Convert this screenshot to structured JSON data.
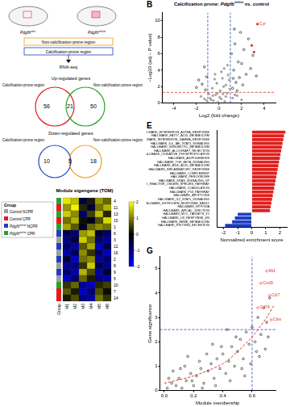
{
  "schematic": {
    "mice": [
      [
        {
          "text": "Pdgfb",
          "italic": true
        },
        {
          "text": "ret/+",
          "sup": true
        }
      ],
      [
        {
          "text": "Pdgfb",
          "italic": true
        },
        {
          "text": "ret/ret",
          "sup": true
        }
      ]
    ],
    "boxes": [
      "Non-calcification-prone region",
      "Calcification-prone region"
    ],
    "method": "RNA-seq"
  },
  "venn": [
    {
      "title": "Up-regulated genes",
      "left": {
        "label": "Calcification-prone region",
        "color": "#e41a1c",
        "count": 56
      },
      "overlap": 21,
      "right": {
        "label": "Non-calcification-prone region",
        "color": "#2ca02c",
        "count": 50
      }
    },
    {
      "title": "Down-regulated genes",
      "left": {
        "label": "Calcification-prone region",
        "color": "#1f3fbf",
        "count": 10
      },
      "overlap": 5,
      "right": {
        "label": "Non-calcification-prone region",
        "color": "#f39c12",
        "count": 18
      }
    }
  ],
  "heatmap": {
    "title": "Module eigengene (TOM)",
    "legend_title": "Group",
    "groups": [
      {
        "parts": [
          {
            "text": "Control NCPR"
          }
        ],
        "color": "#9e9e9e"
      },
      {
        "parts": [
          {
            "text": "Control CPR"
          }
        ],
        "color": "#e41a1c"
      },
      {
        "parts": [
          {
            "text": "Pdgfb",
            "italic": true
          },
          {
            "text": "ret/ret",
            "sup": true
          },
          {
            "text": " NCPR"
          }
        ],
        "color": "#1f3fbf"
      },
      {
        "parts": [
          {
            "text": "Pdgfb",
            "italic": true
          },
          {
            "text": "ret/ret",
            "sup": true
          },
          {
            "text": " CPR"
          }
        ],
        "color": "#2ca02c"
      }
    ],
    "group_axis_label": "Group",
    "columns": [
      "M1",
      "M2",
      "M3",
      "M4",
      "M5",
      "M6"
    ],
    "rows": [
      "4",
      "11",
      "13",
      "15",
      "1",
      "6",
      "3",
      "12",
      "16",
      "2",
      "8",
      "9",
      "5",
      "10",
      "7",
      "14"
    ],
    "row_groups": [
      3,
      1,
      3,
      1,
      3,
      2,
      0,
      2,
      0,
      2,
      0,
      2,
      0,
      3,
      1,
      1
    ],
    "cells": [
      [
        1.8,
        1.5,
        -0.5,
        0.2,
        1.2,
        0.8
      ],
      [
        1.2,
        1.9,
        0.3,
        -0.4,
        0.9,
        1.4
      ],
      [
        1.6,
        1.1,
        -0.8,
        0.5,
        1.5,
        0.3
      ],
      [
        0.9,
        1.4,
        0.1,
        -0.2,
        0.6,
        1.7
      ],
      [
        1.3,
        0.7,
        -0.3,
        0.8,
        1.1,
        0.9
      ],
      [
        -0.6,
        -0.9,
        1.2,
        1.5,
        -0.4,
        -0.8
      ],
      [
        -1.1,
        -0.5,
        1.6,
        0.9,
        -0.9,
        -1.2
      ],
      [
        -0.8,
        -1.3,
        0.7,
        1.3,
        -1.5,
        -0.6
      ],
      [
        -1.4,
        -0.7,
        1.1,
        0.4,
        -0.8,
        -1.5
      ],
      [
        -0.5,
        -1.6,
        0.9,
        1.1,
        -1.2,
        -0.9
      ],
      [
        -1.2,
        -1.0,
        0.4,
        1.6,
        -0.6,
        -1.1
      ],
      [
        -0.9,
        -1.4,
        1.4,
        0.6,
        -1.3,
        -0.4
      ],
      [
        -1.6,
        -0.8,
        0.8,
        0.2,
        -1.0,
        -1.3
      ],
      [
        0.4,
        0.8,
        -1.2,
        -1.5,
        0.3,
        0.5
      ],
      [
        0.7,
        0.2,
        -1.6,
        -0.9,
        0.6,
        0.1
      ],
      [
        0.2,
        0.6,
        -1.0,
        -1.3,
        0.9,
        0.4
      ]
    ],
    "color_range": [
      -2,
      2
    ],
    "color_ticks": [
      2,
      1,
      0,
      -1,
      -2
    ]
  },
  "chart_data": [
    {
      "type": "scatter",
      "panel": "B",
      "title": [
        {
          "text": "Calcification prone: "
        },
        {
          "text": "Pdgfb",
          "italic": true
        },
        {
          "text": "ret/ret",
          "sup": true
        },
        {
          "text": " vs. control"
        }
      ],
      "x_label": "Log2 (fold change)",
      "y_label": "−Log10 (adj − P value)",
      "xlim": [
        -5,
        5
      ],
      "xticks": [
        -4,
        -2,
        0,
        2,
        4
      ],
      "ylim": [
        0,
        11
      ],
      "yticks": [
        0,
        2,
        4,
        6,
        8,
        10
      ],
      "grid": false,
      "series": [
        {
          "color": "#a0a0a0",
          "marker": "circle",
          "values": [
            [
              -0.5,
              0.3
            ],
            [
              0.2,
              0.5
            ],
            [
              -0.3,
              1.0
            ],
            [
              0.6,
              0.8
            ],
            [
              0.1,
              1.5
            ],
            [
              -0.8,
              0.6
            ],
            [
              0.4,
              2.0
            ],
            [
              -0.2,
              2.4
            ],
            [
              0.7,
              1.2
            ],
            [
              0.9,
              2.8
            ],
            [
              -0.6,
              1.8
            ],
            [
              0.3,
              3.0
            ],
            [
              -0.9,
              1.1
            ],
            [
              0.5,
              0.2
            ],
            [
              -0.1,
              0.1
            ],
            [
              0.8,
              3.4
            ],
            [
              -0.4,
              2.9
            ],
            [
              0.2,
              3.8
            ],
            [
              0.6,
              2.2
            ],
            [
              -0.7,
              0.4
            ],
            [
              0.95,
              1.7
            ],
            [
              -0.15,
              1.2
            ],
            [
              0.35,
              1.1
            ],
            [
              0.05,
              0.7
            ],
            [
              -0.55,
              0.9
            ],
            [
              1.2,
              0.6
            ],
            [
              -1.3,
              0.5
            ],
            [
              1.6,
              0.9
            ],
            [
              -1.1,
              0.3
            ],
            [
              2.0,
              0.4
            ],
            [
              1.4,
              1.0
            ],
            [
              -1.6,
              0.8
            ],
            [
              0.45,
              4.2
            ],
            [
              0.75,
              4.6
            ],
            [
              -0.35,
              3.5
            ]
          ]
        },
        {
          "color": "#000000",
          "marker": "open",
          "values": [
            [
              1.2,
              1.8
            ],
            [
              1.5,
              2.5
            ],
            [
              1.8,
              3.1
            ],
            [
              2.1,
              2.2
            ],
            [
              1.3,
              4.0
            ],
            [
              2.4,
              3.5
            ],
            [
              1.7,
              5.0
            ],
            [
              2.8,
              4.2
            ],
            [
              1.1,
              6.0
            ],
            [
              2.2,
              6.5
            ],
            [
              3.0,
              5.8
            ],
            [
              1.4,
              7.2
            ],
            [
              2.6,
              7.8
            ],
            [
              1.9,
              8.6
            ],
            [
              -1.2,
              1.6
            ],
            [
              -1.5,
              2.3
            ],
            [
              -1.1,
              3.2
            ],
            [
              -2.0,
              1.9
            ],
            [
              -1.3,
              4.4
            ],
            [
              -1.8,
              2.8
            ],
            [
              1.25,
              3.0
            ],
            [
              1.6,
              1.5
            ],
            [
              2.0,
              4.8
            ],
            [
              3.3,
              3.3
            ],
            [
              1.35,
              9.0
            ]
          ]
        },
        {
          "color": "#e0301e",
          "marker": "circle",
          "values": [
            [
              3.4,
              9.6
            ],
            [
              2.9,
              7.0
            ],
            [
              3.1,
              6.2
            ]
          ]
        }
      ],
      "thresholds": {
        "x": [
          -1,
          1
        ],
        "y": 1.3,
        "x_color": "#1f3fbf",
        "y_color": "#e0301e",
        "line_style": "dashed"
      },
      "annotations": [
        {
          "label": "Cyr",
          "x": 3.4,
          "y": 9.6,
          "color": "#e0301e"
        }
      ]
    },
    {
      "type": "bar",
      "panel": "E",
      "orientation": "horizontal",
      "x_label": "Normalized enrichment score",
      "xlim": [
        -2.5,
        2.5
      ],
      "xticks": [
        -2,
        -1,
        0,
        1,
        2
      ],
      "grid": false,
      "categories": [
        "HALLMARK_INTERFERON_ALPHA_RESPONSE",
        "HALLMARK_FATTY_ACID_METABOLISM",
        "HALLMARK_INTERFERON_GAMMA_RESPONSE",
        "HALLMARK_IL6_JAK_STAT3_SIGNALING",
        "HALLMARK_XENOBIOTIC_METABOLISM",
        "HALLMARK_ALLOGRAFT_REJECTION",
        "HALLMARK_OXIDATIVE_PHOSPHORYLATION",
        "HALLMARK_ADIPOGENESIS",
        "HALLMARK_TGF_BETA_SIGNALING",
        "HALLMARK_BILE_ACID_METABOLISM",
        "HALLMARK_INFLAMMATORY_RESPONSE",
        "HALLMARK_COMPLEMENT",
        "HALLMARK_PEROXISOME",
        "HALLMARK_KRAS_SIGNALING_UP",
        "HALLMARK_REACTIVE_OXIGEN_SPECIES_PATHWAY",
        "HALLMARK_COAGULATION",
        "HALLMARK_P53_PATHWAY",
        "HALLMARK_APOPTOSIS",
        "HALLMARK_IL2_STAT5_SIGNALING",
        "HALLMARK_ESTROGEN_RESPONSE_EARLY",
        "HALLMARK_HYPOXIA",
        "HALLMARK_APICAL_JUNCTION",
        "HALLMARK_MYC_TARGETS_V1",
        "HALLMARK_UV_RESPONSE_DN",
        "HALLMARK_HEME_METABOLISM",
        "HALLMARK_PROTEIN_SECRETION"
      ],
      "values": [
        2.4,
        2.3,
        2.25,
        2.2,
        2.15,
        2.1,
        2.05,
        2.0,
        1.95,
        1.9,
        1.85,
        1.8,
        1.75,
        1.7,
        1.65,
        1.6,
        1.55,
        1.5,
        1.45,
        1.4,
        1.35,
        1.3,
        -1.0,
        -1.2,
        -1.4,
        -1.9
      ],
      "colors": [
        "#e0201e",
        "#e0201e",
        "#e0201e",
        "#e0201e",
        "#e0201e",
        "#e0201e",
        "#e0201e",
        "#e0201e",
        "#e0201e",
        "#e0201e",
        "#e0201e",
        "#e0201e",
        "#e0201e",
        "#e0201e",
        "#e0201e",
        "#e0201e",
        "#e0201e",
        "#e0201e",
        "#e0201e",
        "#e0201e",
        "#e0201e",
        "#e0201e",
        "#1f3fbf",
        "#1f3fbf",
        "#1f3fbf",
        "#1f3fbf"
      ]
    },
    {
      "type": "scatter",
      "panel": "G",
      "x_label": "Module membership",
      "y_label": "Gene significance",
      "xlim": [
        -0.03,
        0.76
      ],
      "xticks": [
        {
          "value": 0,
          "label": "0.0"
        },
        0.2,
        0.4,
        0.6
      ],
      "ylim": [
        0,
        5.5
      ],
      "yticks": [
        0,
        1,
        2,
        3,
        4,
        5
      ],
      "grid": false,
      "series": [
        {
          "color": "#000000",
          "marker": "open",
          "values": [
            [
              0.02,
              0.1
            ],
            [
              0.05,
              0.3
            ],
            [
              0.08,
              0.2
            ],
            [
              0.1,
              0.5
            ],
            [
              0.12,
              0.1
            ],
            [
              0.15,
              0.4
            ],
            [
              0.18,
              0.7
            ],
            [
              0.2,
              0.2
            ],
            [
              0.22,
              0.6
            ],
            [
              0.25,
              0.9
            ],
            [
              0.27,
              0.3
            ],
            [
              0.3,
              0.8
            ],
            [
              0.32,
              1.1
            ],
            [
              0.34,
              0.5
            ],
            [
              0.36,
              1.3
            ],
            [
              0.38,
              0.9
            ],
            [
              0.4,
              1.5
            ],
            [
              0.42,
              0.7
            ],
            [
              0.44,
              1.2
            ],
            [
              0.46,
              1.8
            ],
            [
              0.48,
              1.0
            ],
            [
              0.5,
              1.6
            ],
            [
              0.52,
              2.1
            ],
            [
              0.54,
              1.3
            ],
            [
              0.56,
              2.4
            ],
            [
              0.58,
              1.9
            ],
            [
              0.6,
              2.6
            ],
            [
              0.62,
              2.0
            ],
            [
              0.64,
              3.0
            ],
            [
              0.66,
              2.3
            ],
            [
              0.68,
              3.4
            ],
            [
              0.7,
              2.8
            ],
            [
              0.72,
              3.8
            ],
            [
              0.06,
              0.8
            ],
            [
              0.14,
              1.0
            ],
            [
              0.24,
              1.2
            ],
            [
              0.35,
              0.2
            ],
            [
              0.45,
              0.4
            ],
            [
              0.55,
              0.6
            ],
            [
              0.65,
              1.4
            ],
            [
              0.03,
              0.5
            ],
            [
              0.11,
              0.9
            ],
            [
              0.19,
              0.4
            ],
            [
              0.29,
              1.5
            ],
            [
              0.39,
              1.8
            ],
            [
              0.49,
              2.2
            ],
            [
              0.59,
              1.1
            ],
            [
              0.69,
              1.7
            ],
            [
              0.16,
              1.4
            ],
            [
              0.26,
              0.1
            ],
            [
              0.33,
              1.9
            ],
            [
              0.43,
              2.5
            ],
            [
              0.53,
              0.9
            ],
            [
              0.63,
              1.6
            ],
            [
              0.71,
              2.2
            ]
          ]
        },
        {
          "color": "#e0301e",
          "marker": "open",
          "values": [
            [
              0.7,
              4.9
            ],
            [
              0.66,
              4.4
            ],
            [
              0.72,
              3.9
            ],
            [
              0.64,
              3.4
            ],
            [
              0.73,
              2.9
            ]
          ]
        }
      ],
      "trend": {
        "color": "#e0301e",
        "line_style": "dashed",
        "values": [
          [
            0,
            0.3
          ],
          [
            0.2,
            0.6
          ],
          [
            0.4,
            1.1
          ],
          [
            0.5,
            1.6
          ],
          [
            0.6,
            2.2
          ],
          [
            0.7,
            3.0
          ],
          [
            0.75,
            3.5
          ]
        ]
      },
      "thresholds": {
        "x": [
          0.6
        ],
        "y": 2.5,
        "x_color": "#1f3fbf",
        "y_color": "#1f3fbf",
        "line_style": "dashed"
      },
      "annotations": [
        {
          "label": "Mt1",
          "x": 0.7,
          "y": 4.9,
          "color": "#e0301e"
        },
        {
          "label": "Cxcl9",
          "x": 0.66,
          "y": 4.4,
          "color": "#e0301e"
        },
        {
          "label": "Ccl7",
          "x": 0.72,
          "y": 3.9,
          "color": "#e0301e"
        },
        {
          "label": "Cd74",
          "x": 0.64,
          "y": 3.4,
          "color": "#e0301e"
        },
        {
          "label": "Ctss",
          "x": 0.73,
          "y": 2.9,
          "color": "#e0301e"
        }
      ]
    }
  ]
}
